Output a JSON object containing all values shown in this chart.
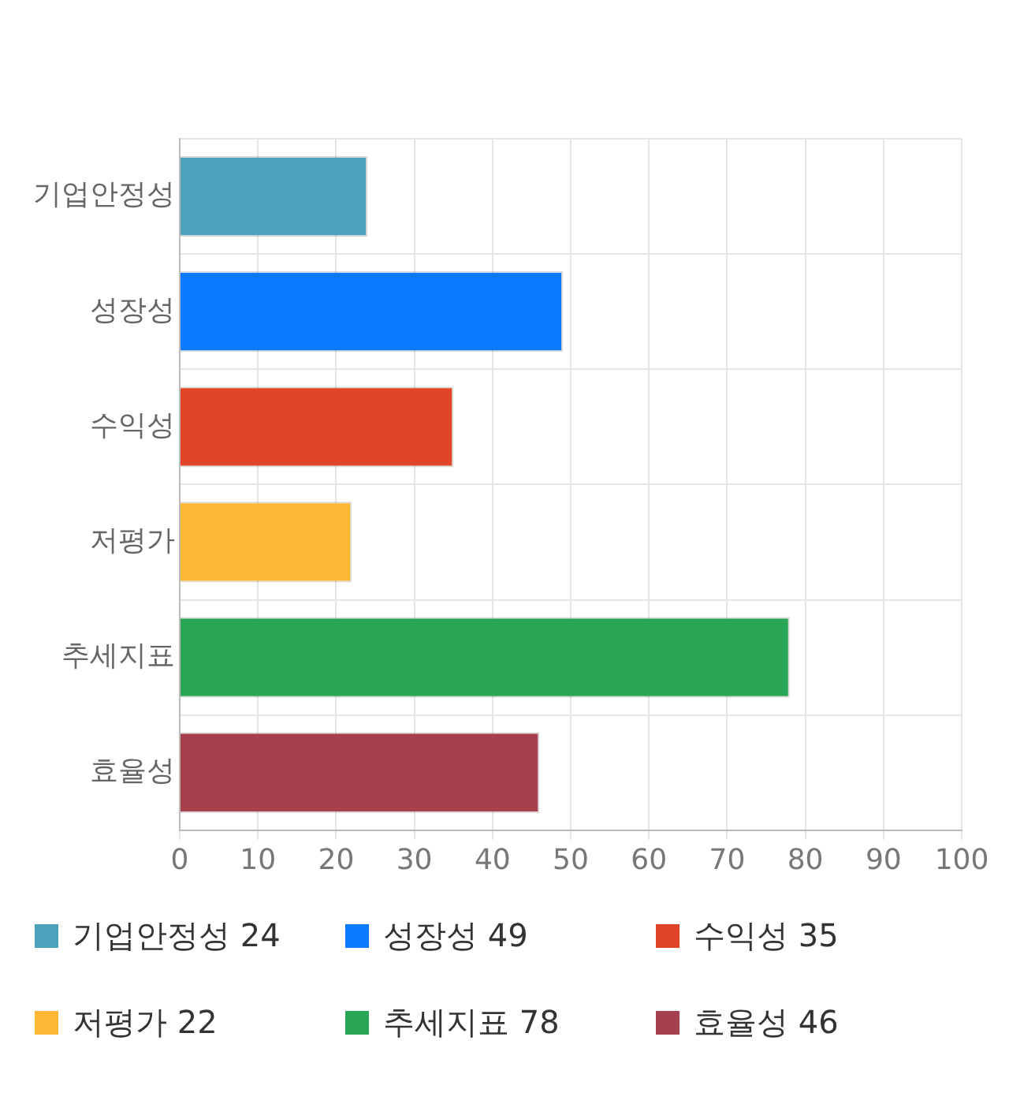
{
  "chart_data": {
    "type": "bar",
    "orientation": "horizontal",
    "categories": [
      "기업안정성",
      "성장성",
      "수익성",
      "저평가",
      "추세지표",
      "효율성"
    ],
    "series": [
      {
        "name": "기업안정성 24",
        "color": "#4aa3ba",
        "values": [
          24,
          null,
          null,
          null,
          null,
          null
        ]
      },
      {
        "name": "성장성 49",
        "color": "#0a7bff",
        "values": [
          null,
          49,
          null,
          null,
          null,
          null
        ]
      },
      {
        "name": "수익성 35",
        "color": "#e24427",
        "values": [
          null,
          null,
          35,
          null,
          null,
          null
        ]
      },
      {
        "name": "저평가 22",
        "color": "#ffb833",
        "values": [
          null,
          null,
          null,
          22,
          null,
          null
        ]
      },
      {
        "name": "추세지표 78",
        "color": "#28a555",
        "values": [
          null,
          null,
          null,
          null,
          78,
          null
        ]
      },
      {
        "name": "효율성 46",
        "color": "#a6404f",
        "values": [
          null,
          null,
          null,
          null,
          null,
          46
        ]
      }
    ],
    "xlim": [
      0,
      100
    ],
    "xticks": [
      0,
      10,
      20,
      30,
      40,
      50,
      60,
      70,
      80,
      90,
      100
    ],
    "grid": true,
    "legend": "bottom"
  }
}
